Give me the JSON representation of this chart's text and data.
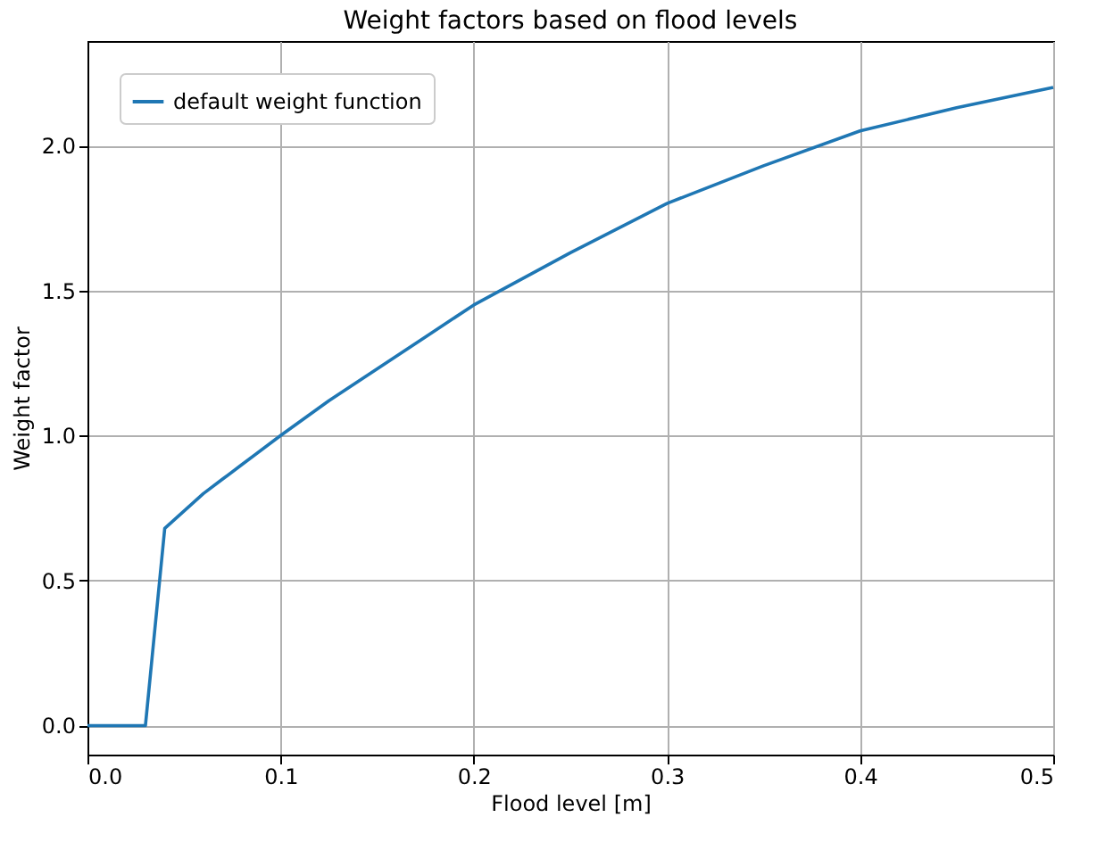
{
  "chart_data": {
    "type": "line",
    "title": "Weight factors based on flood levels",
    "xlabel": "Flood level [m]",
    "ylabel": "Weight factor",
    "series": [
      {
        "name": "default weight function",
        "color": "#1f77b4",
        "x": [
          0,
          0.01,
          0.02,
          0.03,
          0.04,
          0.05,
          0.06,
          0.07,
          0.08,
          0.1,
          0.125,
          0.15,
          0.175,
          0.2,
          0.25,
          0.3,
          0.35,
          0.4,
          0.45,
          0.5
        ],
        "values": [
          0,
          0,
          0,
          0,
          0.68,
          0.74,
          0.8,
          0.85,
          0.9,
          1.0,
          1.12,
          1.23,
          1.34,
          1.45,
          1.63,
          1.8,
          1.93,
          2.05,
          2.13,
          2.2
        ]
      }
    ],
    "xlim": [
      0,
      0.5
    ],
    "xticks": [
      {
        "value": 0,
        "label": "0.0"
      },
      0.1,
      0.2,
      0.3,
      0.4,
      0.5
    ],
    "ylim": [
      -0.1,
      2.36
    ],
    "yticks": [
      {
        "value": 0,
        "label": "0.0"
      },
      0.5,
      {
        "value": 1,
        "label": "1.0"
      },
      1.5,
      {
        "value": 2,
        "label": "2.0"
      }
    ],
    "grid": true,
    "legend": "top left",
    "line_style": "solid",
    "marker": "none"
  }
}
